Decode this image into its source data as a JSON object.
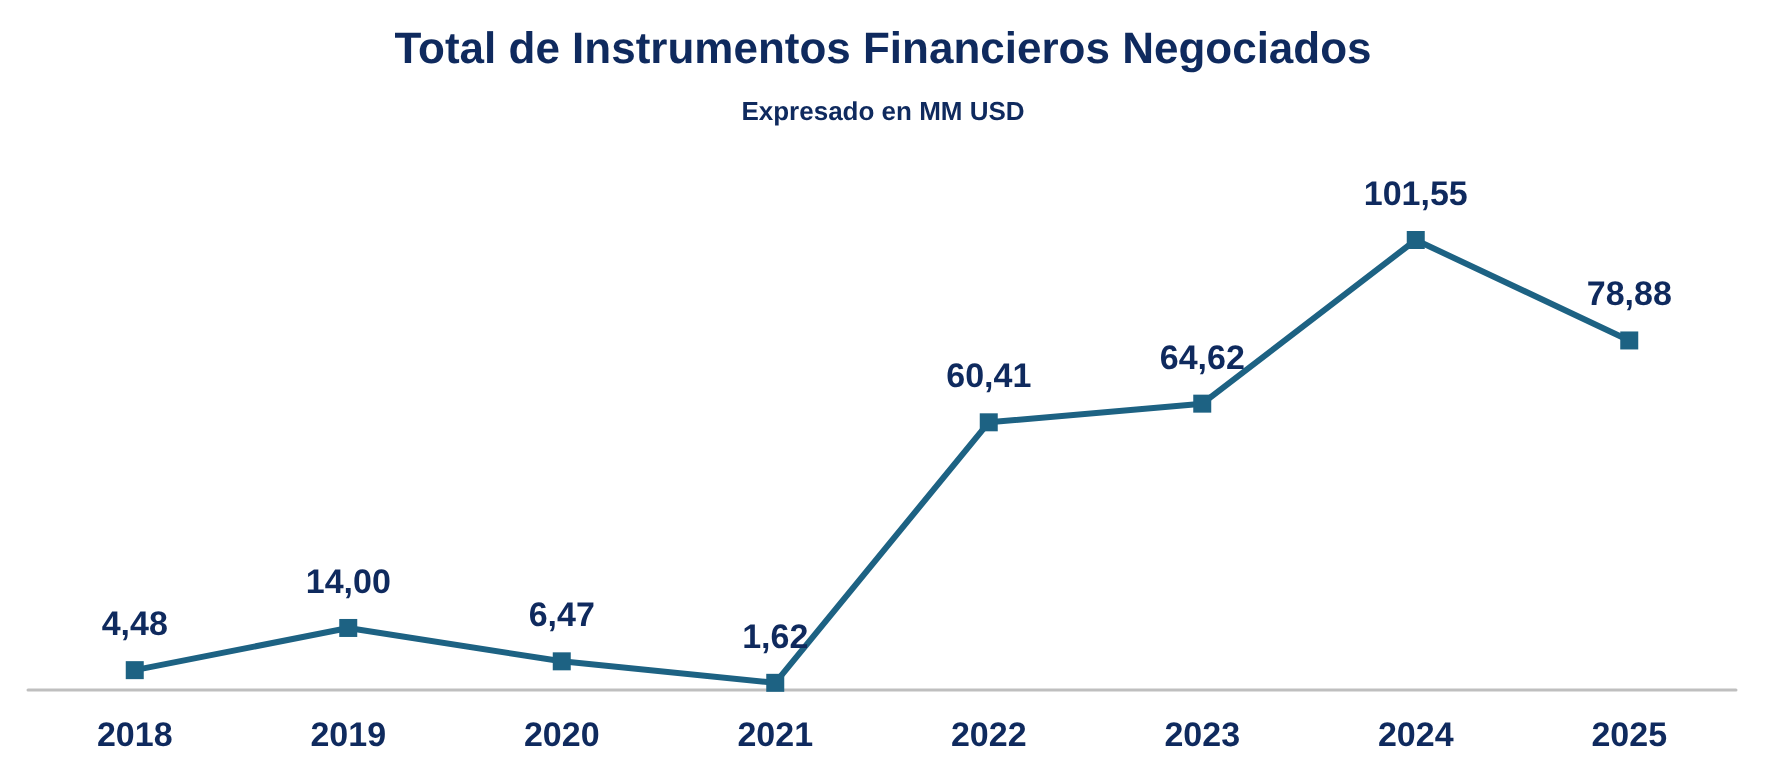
{
  "chart_data": {
    "type": "line",
    "title": "Total de Instrumentos Financieros Negociados",
    "subtitle": "Expresado en MM USD",
    "categories": [
      "2018",
      "2019",
      "2020",
      "2021",
      "2022",
      "2023",
      "2024",
      "2025"
    ],
    "series": [
      {
        "color": "#1d6283",
        "values": [
          4.48,
          14.0,
          6.47,
          1.62,
          60.41,
          64.62,
          101.55,
          78.88
        ],
        "value_labels": [
          "4,48",
          "14,00",
          "6,47",
          "1,62",
          "60,41",
          "64,62",
          "101,55",
          "78,88"
        ]
      }
    ],
    "marker": "square",
    "line_style": "solid",
    "tick_labels": "x"
  }
}
